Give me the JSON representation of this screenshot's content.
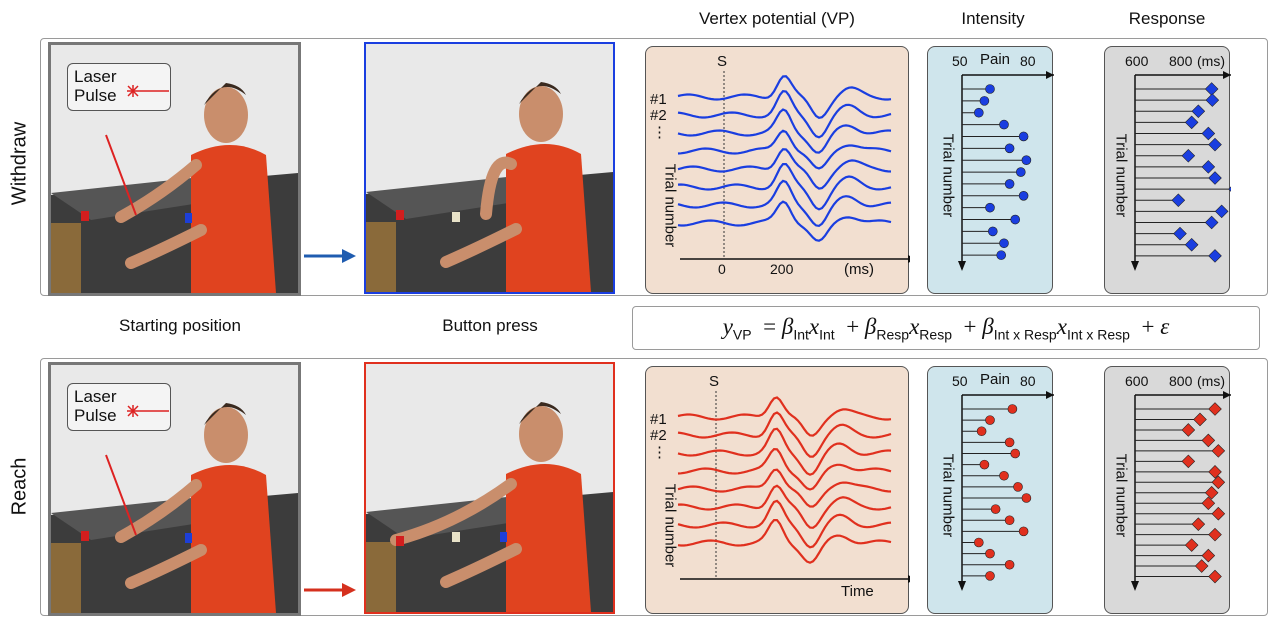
{
  "columns": {
    "vp_title": "Vertex potential (VP)",
    "intensity_title": "Intensity",
    "response_title": "Response"
  },
  "rows": [
    {
      "label": "Withdraw",
      "accent": "#1a3ee0",
      "marker_color": "#1a3ee0",
      "marker": "diamond-blue"
    },
    {
      "label": "Reach",
      "accent": "#e0301e",
      "marker_color": "#e0301e",
      "marker": "circle-red"
    }
  ],
  "captions": {
    "starting": "Starting position",
    "button": "Button press"
  },
  "laser": {
    "line1": "Laser",
    "line2": "Pulse"
  },
  "vp_panel": {
    "stimulus_label": "S",
    "trial1": "#1",
    "trial2": "#2",
    "dots": "⋮",
    "ylabel": "Trial number",
    "top_xticks": [
      "0",
      "200"
    ],
    "top_xunit": "(ms)",
    "bottom_xlabel": "Time"
  },
  "intensity_panel": {
    "axis_min": "50",
    "axis_max": "80",
    "axis_label": "Pain",
    "ylabel": "Trial number"
  },
  "response_panel": {
    "axis_min": "600",
    "axis_mid": "800",
    "axis_unit": "(ms)",
    "ylabel": "Trial number"
  },
  "chart_data": [
    {
      "type": "scatter",
      "panel": "withdraw-intensity",
      "axis": "Pain",
      "xlim": [
        50,
        80
      ],
      "values": [
        60,
        58,
        56,
        65,
        72,
        67,
        73,
        71,
        67,
        72,
        60,
        69,
        61,
        65,
        64
      ]
    },
    {
      "type": "scatter",
      "panel": "withdraw-response",
      "axis": "(ms)",
      "xlim": [
        600,
        900
      ],
      "values": [
        830,
        832,
        790,
        770,
        820,
        840,
        760,
        820,
        840,
        900,
        730,
        860,
        830,
        735,
        770,
        840
      ]
    },
    {
      "type": "scatter",
      "panel": "reach-intensity",
      "axis": "Pain",
      "xlim": [
        50,
        80
      ],
      "values": [
        68,
        60,
        57,
        67,
        69,
        58,
        65,
        70,
        73,
        62,
        67,
        72,
        56,
        60,
        67,
        60
      ]
    },
    {
      "type": "scatter",
      "panel": "reach-response",
      "axis": "(ms)",
      "xlim": [
        600,
        900
      ],
      "values": [
        840,
        795,
        760,
        820,
        850,
        760,
        840,
        850,
        830,
        820,
        850,
        790,
        840,
        770,
        820,
        800,
        840
      ]
    }
  ],
  "equation": {
    "lhs": "y",
    "lhs_sub": "VP",
    "t1_sub": "Int",
    "t1_xsub": "Int",
    "t2_sub": "Resp",
    "t2_xsub": "Resp",
    "t3_sub": "Int x Resp",
    "t3_xsub": "Int x Resp"
  }
}
